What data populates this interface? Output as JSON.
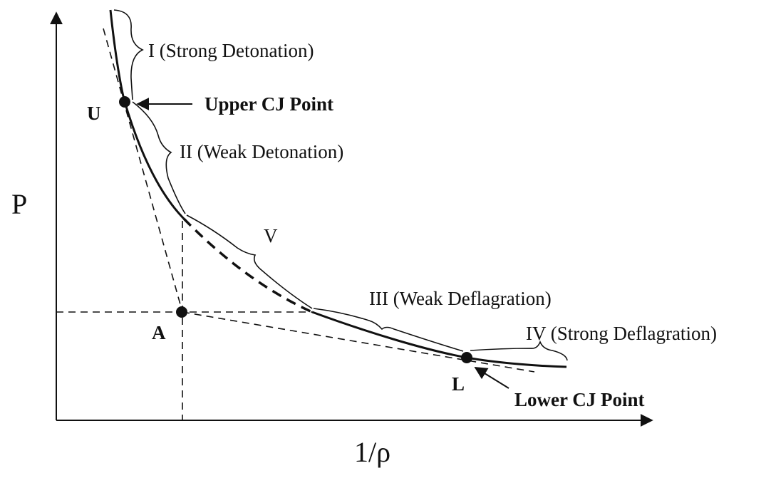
{
  "axes": {
    "y_label": "P",
    "x_label": "1/ρ"
  },
  "points": {
    "upper": "U",
    "initial": "A",
    "lower": "L"
  },
  "callouts": {
    "upper_cj": "Upper CJ Point",
    "lower_cj": "Lower CJ Point"
  },
  "regions": {
    "strong_detonation": "I (Strong Detonation)",
    "weak_detonation": "II (Weak Detonation)",
    "forbidden": "V",
    "weak_deflagration": "III (Weak Deflagration)",
    "strong_deflagration": "IV (Strong Deflagration)"
  },
  "colors": {
    "ink": "#111111",
    "background": "#ffffff"
  }
}
